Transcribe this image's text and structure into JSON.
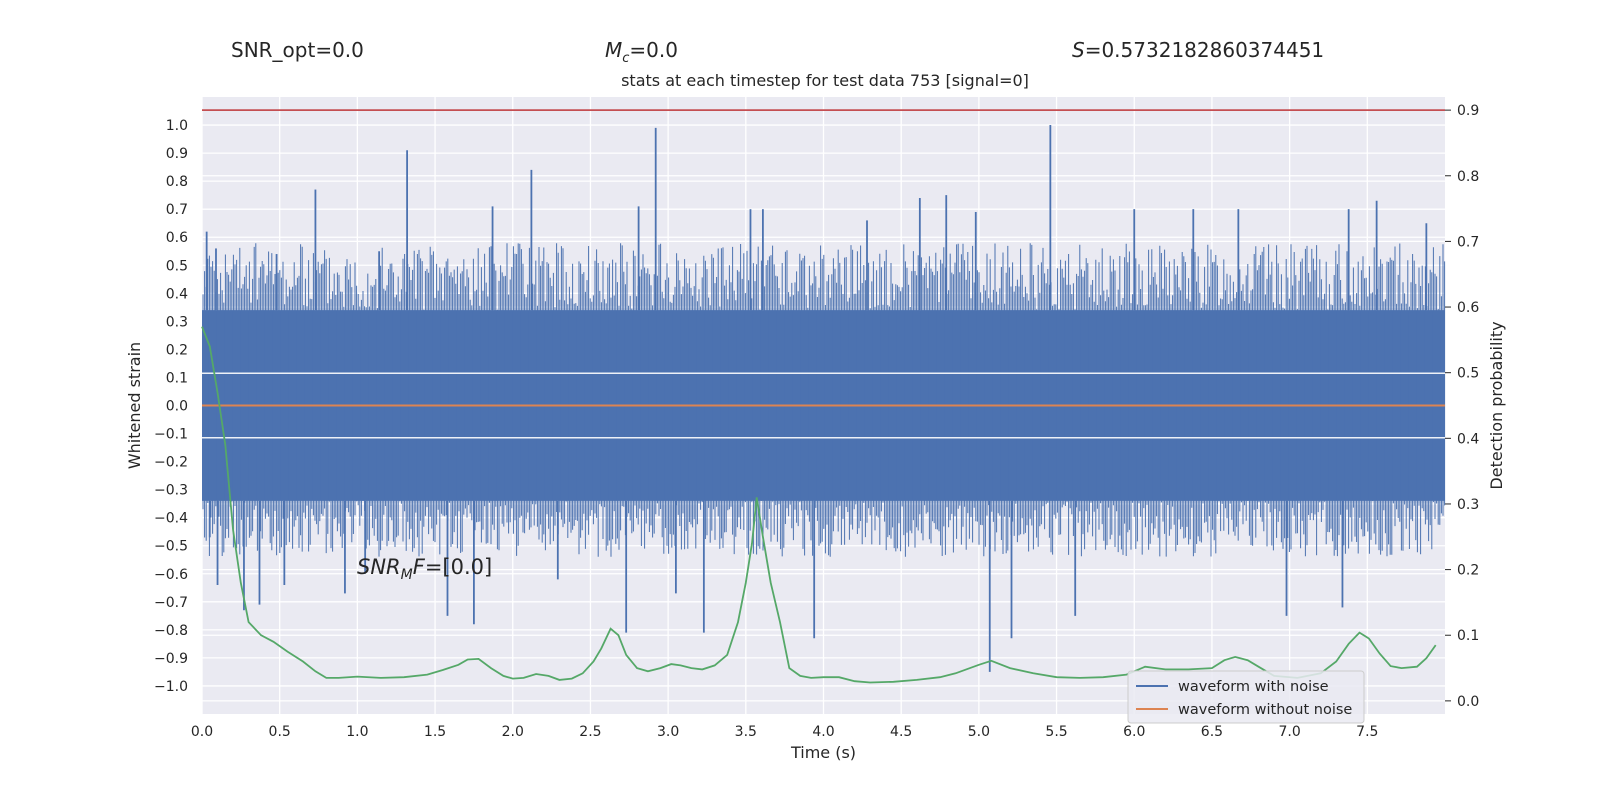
{
  "header": {
    "snr_opt": "SNR_opt=0.0",
    "mc_symbol": "M",
    "mc_sub": "c",
    "mc_value": "=0.0",
    "s_symbol": "S",
    "s_value": "=0.5732182860374451"
  },
  "annotation": {
    "snr_prefix": "SNR",
    "snr_sub": "M",
    "snr_f": "F",
    "snr_value": "=[0.0]"
  },
  "chart_data": {
    "type": "line",
    "title": "stats at each timestep for test data 753 [signal=0]",
    "xlabel": "Time (s)",
    "ylabel": "Whitened strain",
    "ylabel_right": "Detection probability",
    "xlim": [
      0.0,
      8.0
    ],
    "ylim": [
      -1.1,
      1.1
    ],
    "ylim_right": [
      -0.02,
      0.92
    ],
    "x_ticks": [
      "0.0",
      "0.5",
      "1.0",
      "1.5",
      "2.0",
      "2.5",
      "3.0",
      "3.5",
      "4.0",
      "4.5",
      "5.0",
      "5.5",
      "6.0",
      "6.5",
      "7.0",
      "7.5"
    ],
    "y_ticks": [
      "1.0",
      "0.9",
      "0.8",
      "0.7",
      "0.6",
      "0.5",
      "0.4",
      "0.3",
      "0.2",
      "0.1",
      "0.0",
      "−0.1",
      "−0.2",
      "−0.3",
      "−0.4",
      "−0.5",
      "−0.6",
      "−0.7",
      "−0.8",
      "−0.9",
      "−1.0"
    ],
    "y_right_ticks": [
      "0.9",
      "0.8",
      "0.7",
      "0.6",
      "0.5",
      "0.4",
      "0.3",
      "0.2",
      "0.1",
      "0.0"
    ],
    "grid": true,
    "legend_position": "lower-right",
    "series": [
      {
        "name": "waveform with noise",
        "color": "#4c72b0",
        "dense_band": [
          -0.34,
          0.34
        ],
        "spikes": [
          [
            0.03,
            0.62
          ],
          [
            0.05,
            -0.47
          ],
          [
            0.09,
            0.56
          ],
          [
            0.1,
            -0.64
          ],
          [
            0.27,
            -0.73
          ],
          [
            0.37,
            -0.71
          ],
          [
            0.48,
            0.54
          ],
          [
            0.53,
            -0.64
          ],
          [
            0.73,
            0.77
          ],
          [
            0.92,
            -0.67
          ],
          [
            1.05,
            -0.6
          ],
          [
            1.14,
            0.55
          ],
          [
            1.32,
            0.91
          ],
          [
            1.58,
            -0.75
          ],
          [
            1.75,
            -0.78
          ],
          [
            1.87,
            0.71
          ],
          [
            2.12,
            0.84
          ],
          [
            2.29,
            -0.62
          ],
          [
            2.73,
            -0.81
          ],
          [
            2.81,
            0.71
          ],
          [
            2.92,
            0.99
          ],
          [
            3.05,
            -0.67
          ],
          [
            3.23,
            -0.81
          ],
          [
            3.53,
            0.7
          ],
          [
            3.61,
            0.7
          ],
          [
            3.94,
            -0.83
          ],
          [
            4.28,
            0.66
          ],
          [
            4.62,
            0.74
          ],
          [
            4.79,
            0.75
          ],
          [
            4.98,
            0.69
          ],
          [
            5.07,
            -0.95
          ],
          [
            5.21,
            -0.83
          ],
          [
            5.46,
            1.0
          ],
          [
            5.62,
            -0.75
          ],
          [
            6.0,
            0.7
          ],
          [
            6.38,
            0.7
          ],
          [
            6.67,
            0.7
          ],
          [
            6.98,
            -0.75
          ],
          [
            7.34,
            -0.72
          ],
          [
            7.38,
            0.7
          ],
          [
            7.56,
            0.73
          ],
          [
            7.88,
            0.65
          ]
        ]
      },
      {
        "name": "waveform without noise",
        "color": "#dd8452",
        "y": 0.0
      },
      {
        "name": "",
        "axis": "right",
        "color": "#55a868",
        "x": [
          0.0,
          0.05,
          0.1,
          0.15,
          0.2,
          0.25,
          0.3,
          0.38,
          0.46,
          0.55,
          0.65,
          0.73,
          0.8,
          0.88,
          1.0,
          1.15,
          1.3,
          1.45,
          1.55,
          1.65,
          1.71,
          1.78,
          1.86,
          1.94,
          2.0,
          2.07,
          2.15,
          2.23,
          2.3,
          2.38,
          2.45,
          2.52,
          2.57,
          2.63,
          2.68,
          2.73,
          2.8,
          2.87,
          2.95,
          3.02,
          3.08,
          3.15,
          3.22,
          3.3,
          3.38,
          3.45,
          3.5,
          3.54,
          3.57,
          3.61,
          3.66,
          3.72,
          3.78,
          3.85,
          3.92,
          4.0,
          4.1,
          4.2,
          4.3,
          4.45,
          4.6,
          4.75,
          4.85,
          5.0,
          5.08,
          5.2,
          5.35,
          5.5,
          5.65,
          5.8,
          5.95,
          6.07,
          6.2,
          6.35,
          6.5,
          6.58,
          6.65,
          6.73,
          6.8,
          6.9,
          7.05,
          7.2,
          7.3,
          7.38,
          7.45,
          7.51,
          7.58,
          7.65,
          7.72,
          7.82,
          7.88,
          7.94
        ],
        "y": [
          0.57,
          0.54,
          0.47,
          0.39,
          0.26,
          0.18,
          0.12,
          0.1,
          0.09,
          0.075,
          0.06,
          0.045,
          0.035,
          0.035,
          0.037,
          0.035,
          0.036,
          0.04,
          0.047,
          0.055,
          0.063,
          0.064,
          0.05,
          0.038,
          0.034,
          0.035,
          0.041,
          0.038,
          0.032,
          0.034,
          0.042,
          0.06,
          0.08,
          0.11,
          0.1,
          0.07,
          0.05,
          0.045,
          0.05,
          0.056,
          0.054,
          0.05,
          0.048,
          0.054,
          0.07,
          0.12,
          0.18,
          0.24,
          0.31,
          0.25,
          0.18,
          0.12,
          0.05,
          0.038,
          0.035,
          0.036,
          0.036,
          0.03,
          0.028,
          0.029,
          0.032,
          0.036,
          0.042,
          0.055,
          0.061,
          0.05,
          0.042,
          0.036,
          0.035,
          0.036,
          0.04,
          0.052,
          0.048,
          0.048,
          0.05,
          0.062,
          0.067,
          0.062,
          0.052,
          0.038,
          0.035,
          0.042,
          0.06,
          0.087,
          0.104,
          0.095,
          0.072,
          0.053,
          0.05,
          0.052,
          0.065,
          0.085
        ]
      }
    ],
    "threshold": {
      "value": 0.9,
      "axis": "right",
      "color": "#c44e52"
    }
  }
}
